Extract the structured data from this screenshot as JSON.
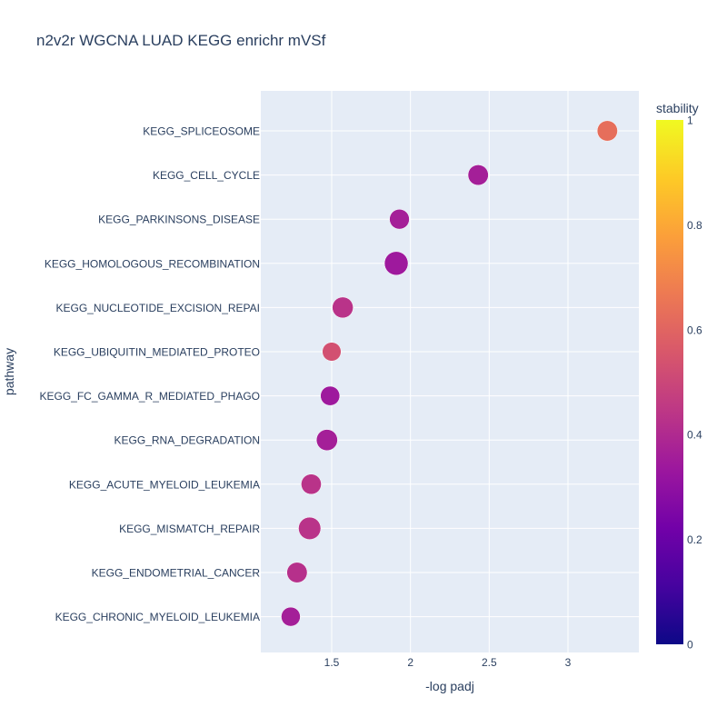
{
  "chart_data": {
    "type": "scatter",
    "title": "n2v2r WGCNA LUAD KEGG enrichr mVSf",
    "xlabel": "-log padj",
    "ylabel": "pathway",
    "xlim": [
      1.05,
      3.45
    ],
    "x_ticks": [
      1.5,
      2,
      2.5,
      3
    ],
    "x_tick_labels": [
      "1.5",
      "2",
      "2.5",
      "3"
    ],
    "grid": true,
    "colorbar": {
      "title": "stability",
      "range": [
        0,
        1
      ],
      "ticks": [
        0,
        0.2,
        0.4,
        0.6,
        0.8,
        1
      ],
      "tick_labels": [
        "0",
        "0.2",
        "0.4",
        "0.6",
        "0.8",
        "1"
      ],
      "colorscale": [
        "#0d0887",
        "#46039f",
        "#7201a8",
        "#9c179e",
        "#bd3786",
        "#d8576b",
        "#ed7953",
        "#fb9f3a",
        "#fdca26",
        "#f0f921"
      ]
    },
    "points": [
      {
        "pathway": "KEGG_SPLICEOSOME",
        "x": 3.25,
        "stability": 0.63,
        "size": 0.7
      },
      {
        "pathway": "KEGG_CELL_CYCLE",
        "x": 2.43,
        "stability": 0.36,
        "size": 0.7
      },
      {
        "pathway": "KEGG_PARKINSONS_DISEASE",
        "x": 1.93,
        "stability": 0.36,
        "size": 0.65
      },
      {
        "pathway": "KEGG_HOMOLOGOUS_RECOMBINATION",
        "x": 1.91,
        "stability": 0.34,
        "size": 1.0
      },
      {
        "pathway": "KEGG_NUCLEOTIDE_EXCISION_REPAI",
        "x": 1.57,
        "stability": 0.43,
        "size": 0.75
      },
      {
        "pathway": "KEGG_UBIQUITIN_MEDIATED_PROTEO",
        "x": 1.5,
        "stability": 0.53,
        "size": 0.55
      },
      {
        "pathway": "KEGG_FC_GAMMA_R_MEDIATED_PHAGO",
        "x": 1.49,
        "stability": 0.34,
        "size": 0.6
      },
      {
        "pathway": "KEGG_RNA_DEGRADATION",
        "x": 1.47,
        "stability": 0.36,
        "size": 0.77
      },
      {
        "pathway": "KEGG_ACUTE_MYELOID_LEUKEMIA",
        "x": 1.37,
        "stability": 0.43,
        "size": 0.68
      },
      {
        "pathway": "KEGG_MISMATCH_REPAIR",
        "x": 1.36,
        "stability": 0.43,
        "size": 0.88
      },
      {
        "pathway": "KEGG_ENDOMETRIAL_CANCER",
        "x": 1.28,
        "stability": 0.42,
        "size": 0.7
      },
      {
        "pathway": "KEGG_CHRONIC_MYELOID_LEUKEMIA",
        "x": 1.24,
        "stability": 0.36,
        "size": 0.58
      }
    ]
  }
}
